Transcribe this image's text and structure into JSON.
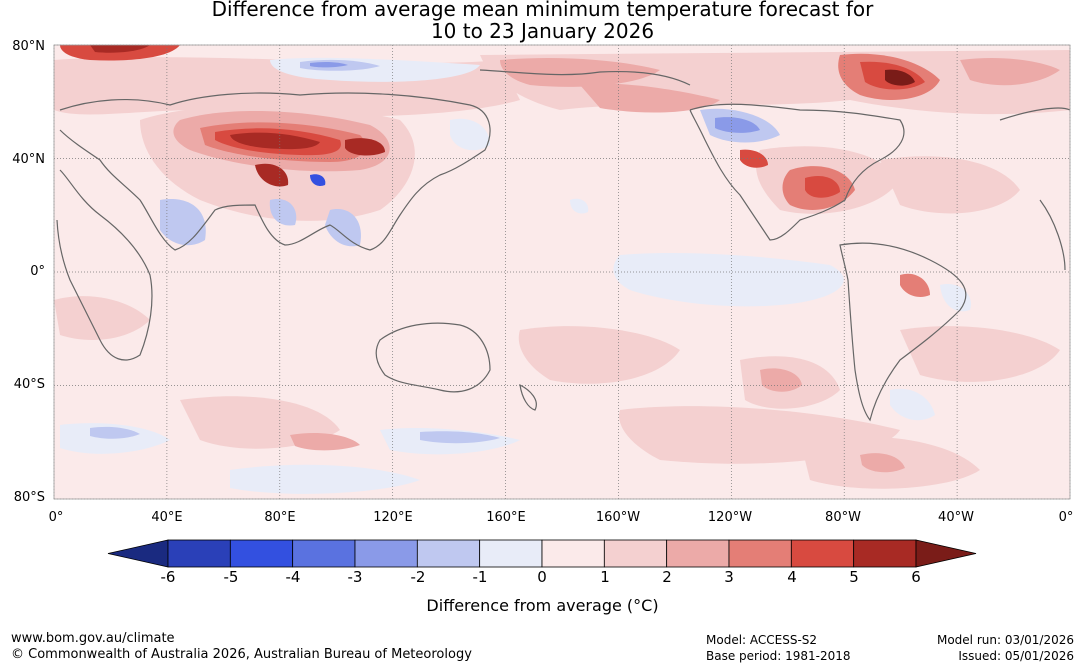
{
  "title": {
    "line1": "Difference from average mean minimum temperature forecast for",
    "line2": "10 to 23 January 2026"
  },
  "map": {
    "lat_labels": [
      "80°N",
      "40°N",
      "0°",
      "40°S",
      "80°S"
    ],
    "lon_labels": [
      "0°",
      "40°E",
      "80°E",
      "120°E",
      "160°E",
      "160°W",
      "120°W",
      "80°W",
      "40°W",
      "0°"
    ],
    "lat_values": [
      80,
      40,
      0,
      -40,
      -80
    ],
    "lon_values": [
      0,
      40,
      80,
      120,
      160,
      200,
      240,
      280,
      320,
      360
    ]
  },
  "colorbar": {
    "ticks": [
      "-6",
      "-5",
      "-4",
      "-3",
      "-2",
      "-1",
      "0",
      "1",
      "2",
      "3",
      "4",
      "5",
      "6"
    ],
    "tick_values": [
      -6,
      -5,
      -4,
      -3,
      -2,
      -1,
      0,
      1,
      2,
      3,
      4,
      5,
      6
    ],
    "colors": [
      "#1a2a80",
      "#2a40b8",
      "#3350e0",
      "#5a72e0",
      "#8a9ae8",
      "#bfc8f0",
      "#e8ecf8",
      "#fbeaea",
      "#f4d0d0",
      "#ecaaa8",
      "#e47e76",
      "#d84a40",
      "#a82a24",
      "#7a1c18"
    ],
    "label": "Difference from average (°C)"
  },
  "footer": {
    "website": "www.bom.gov.au/climate",
    "copyright": "© Commonwealth of Australia 2026, Australian Bureau of Meteorology",
    "model": "Model: ACCESS-S2",
    "base_period": "Base period: 1981-2018",
    "model_run": "Model run: 03/01/2026",
    "issued": "Issued: 05/01/2026"
  }
}
